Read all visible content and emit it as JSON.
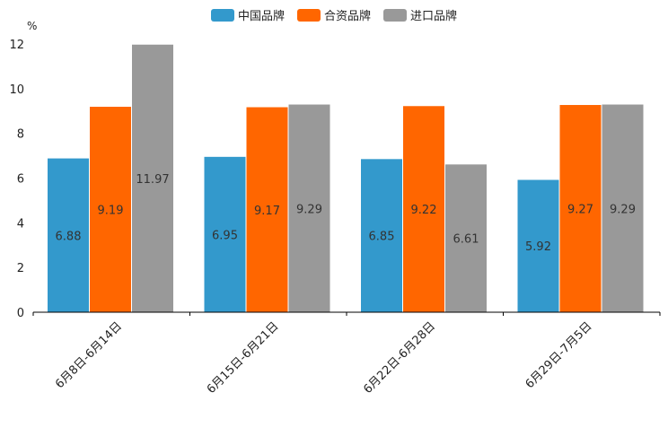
{
  "chart_data": {
    "type": "bar",
    "unit": "%",
    "categories": [
      "6月8日-6月14日",
      "6月15日-6月21日",
      "6月22日-6月28日",
      "6月29日-7月5日"
    ],
    "series": [
      {
        "name": "中国品牌",
        "color": "#3399cc",
        "values": [
          6.88,
          6.95,
          6.85,
          5.92
        ],
        "labels": [
          "6.88",
          "6.95",
          "6.85",
          "5.92"
        ]
      },
      {
        "name": "合资品牌",
        "color": "#ff6600",
        "values": [
          9.19,
          9.17,
          9.22,
          9.27
        ],
        "labels": [
          "9.19",
          "9.17",
          "9.22",
          "9.27"
        ]
      },
      {
        "name": "进口品牌",
        "color": "#999999",
        "values": [
          11.97,
          9.29,
          6.61,
          9.29
        ],
        "labels": [
          "11.97",
          "9.29",
          "6.61",
          "9.29"
        ]
      }
    ],
    "ylim": [
      0,
      12
    ],
    "yticks": [
      "0",
      "2",
      "4",
      "6",
      "8",
      "10",
      "12"
    ],
    "legend_position": "top-center"
  }
}
